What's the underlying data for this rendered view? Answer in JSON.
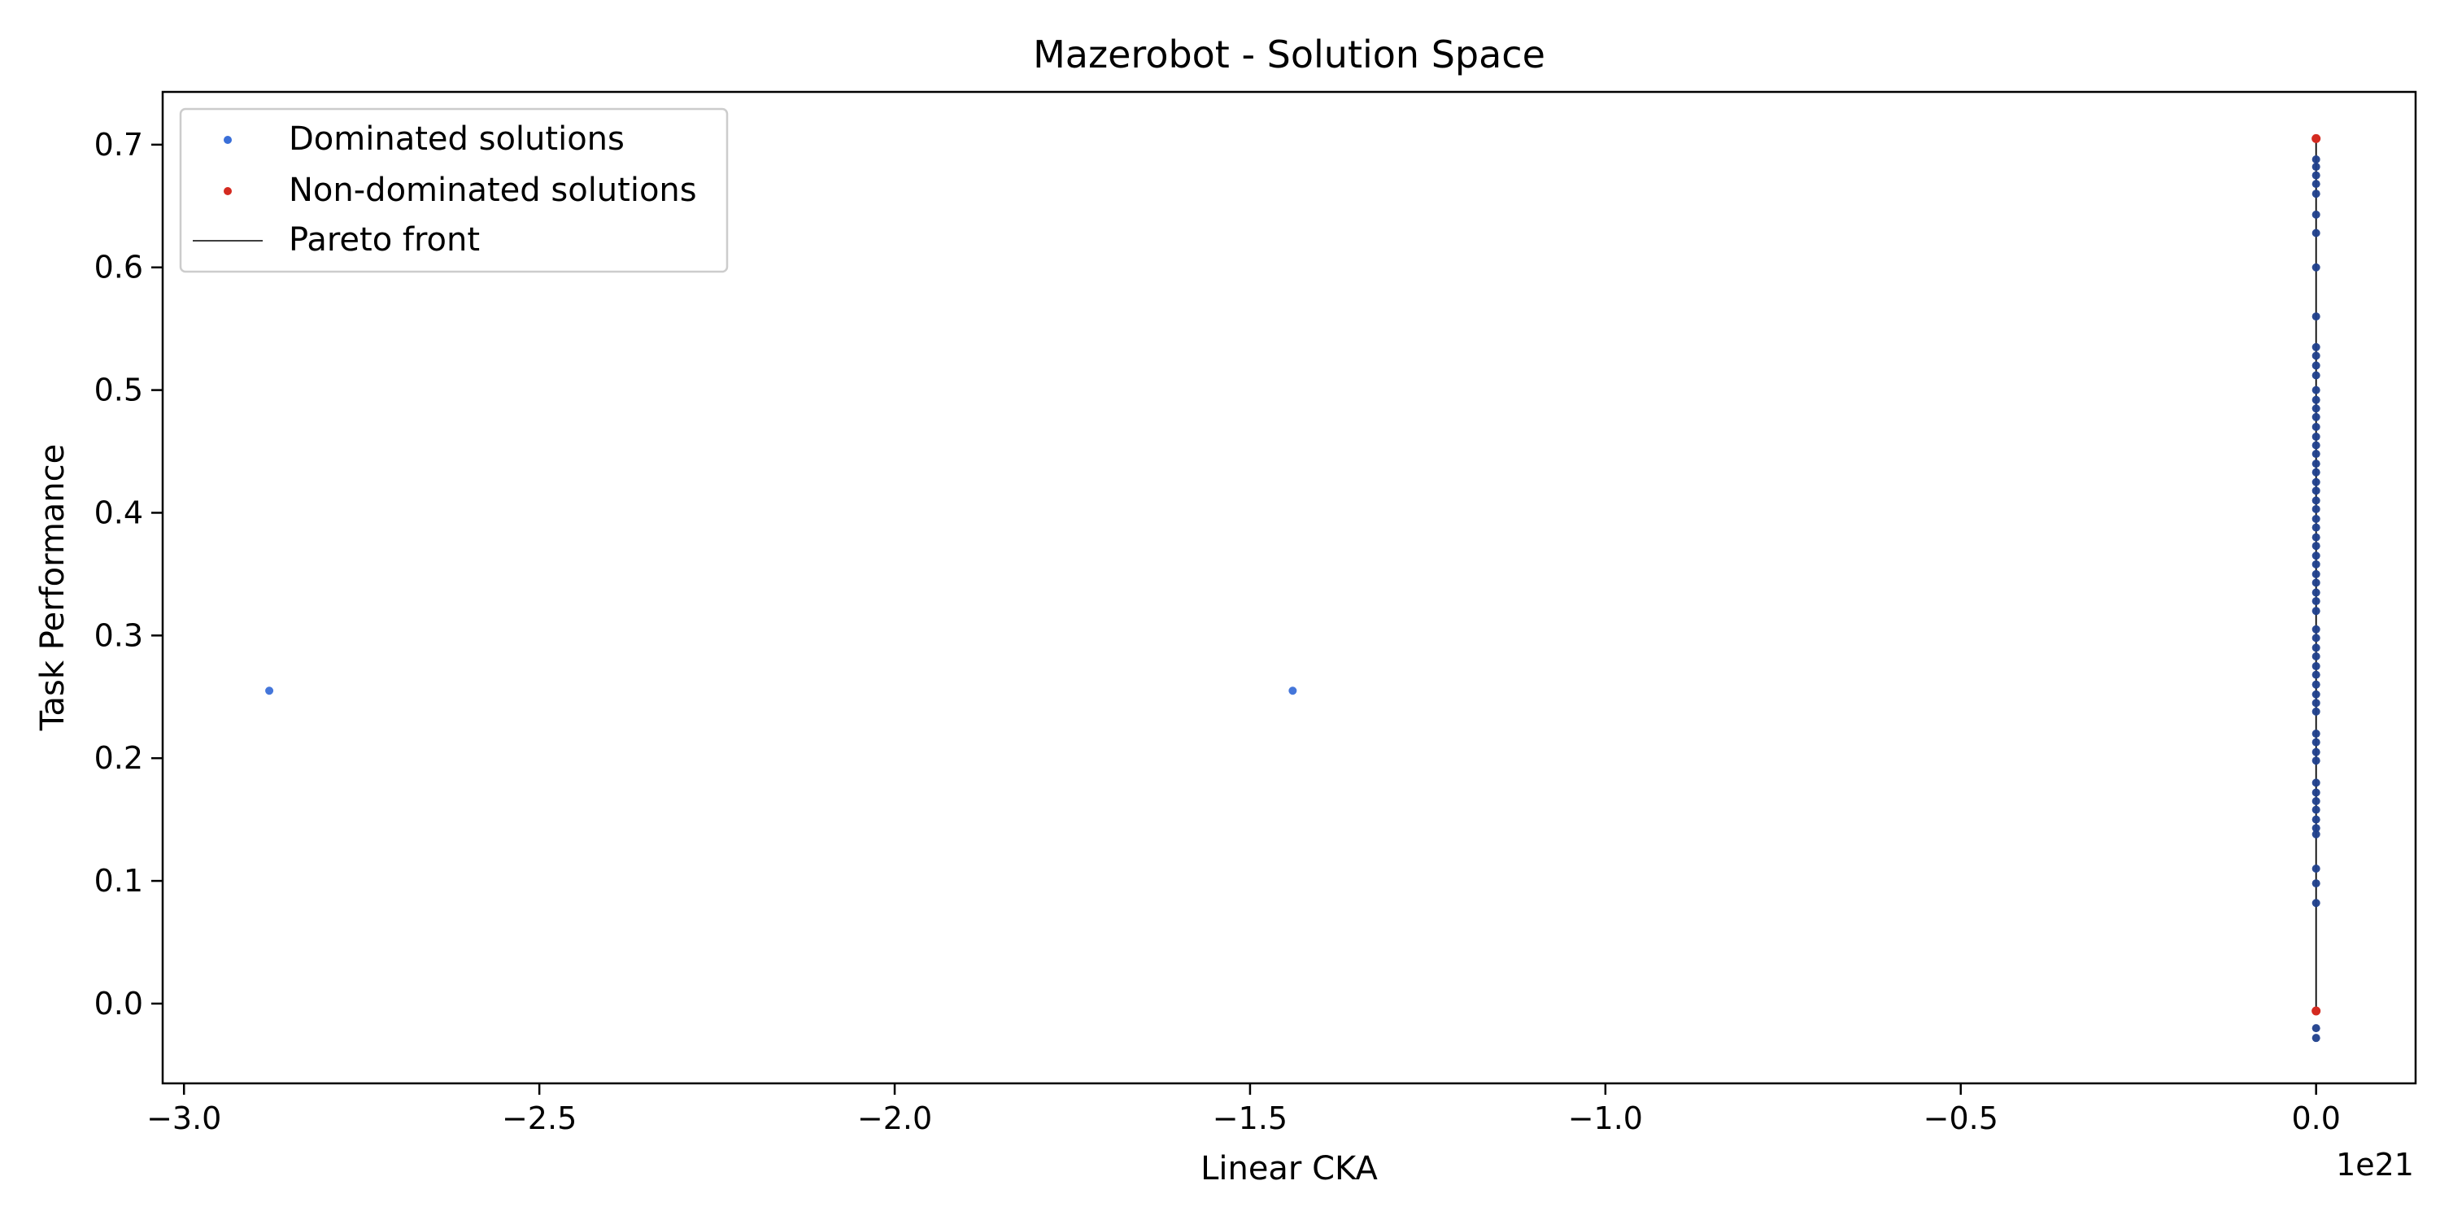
{
  "chart_data": {
    "type": "scatter",
    "title": "Mazerobot - Solution Space",
    "xlabel": "Linear CKA",
    "ylabel": "Task Performance",
    "x_offset_text": "1e21",
    "x_scale_factor": 1e+21,
    "xlim": [
      -3.03,
      0.14
    ],
    "ylim": [
      -0.065,
      0.743
    ],
    "x_ticks": [
      -3.0,
      -2.5,
      -2.0,
      -1.5,
      -1.0,
      -0.5,
      0.0
    ],
    "x_tick_labels": [
      "−3.0",
      "−2.5",
      "−2.0",
      "−1.5",
      "−1.0",
      "−0.5",
      "0.0"
    ],
    "y_ticks": [
      0.0,
      0.1,
      0.2,
      0.3,
      0.4,
      0.5,
      0.6,
      0.7
    ],
    "y_tick_labels": [
      "0.0",
      "0.1",
      "0.2",
      "0.3",
      "0.4",
      "0.5",
      "0.6",
      "0.7"
    ],
    "grid": false,
    "legend_position": "top-left",
    "series": [
      {
        "name": "Dominated solutions",
        "kind": "scatter",
        "color": "#3a6fd8",
        "edge_color": "#1f3f8c",
        "points": [
          {
            "x": -2.88,
            "y": 0.255
          },
          {
            "x": -1.44,
            "y": 0.255
          },
          {
            "x": 0,
            "y": 0.688
          },
          {
            "x": 0,
            "y": 0.682
          },
          {
            "x": 0,
            "y": 0.675
          },
          {
            "x": 0,
            "y": 0.668
          },
          {
            "x": 0,
            "y": 0.66
          },
          {
            "x": 0,
            "y": 0.643
          },
          {
            "x": 0,
            "y": 0.628
          },
          {
            "x": 0,
            "y": 0.6
          },
          {
            "x": 0,
            "y": 0.56
          },
          {
            "x": 0,
            "y": 0.535
          },
          {
            "x": 0,
            "y": 0.528
          },
          {
            "x": 0,
            "y": 0.52
          },
          {
            "x": 0,
            "y": 0.512
          },
          {
            "x": 0,
            "y": 0.5
          },
          {
            "x": 0,
            "y": 0.492
          },
          {
            "x": 0,
            "y": 0.485
          },
          {
            "x": 0,
            "y": 0.478
          },
          {
            "x": 0,
            "y": 0.47
          },
          {
            "x": 0,
            "y": 0.462
          },
          {
            "x": 0,
            "y": 0.455
          },
          {
            "x": 0,
            "y": 0.448
          },
          {
            "x": 0,
            "y": 0.44
          },
          {
            "x": 0,
            "y": 0.433
          },
          {
            "x": 0,
            "y": 0.425
          },
          {
            "x": 0,
            "y": 0.418
          },
          {
            "x": 0,
            "y": 0.41
          },
          {
            "x": 0,
            "y": 0.403
          },
          {
            "x": 0,
            "y": 0.395
          },
          {
            "x": 0,
            "y": 0.388
          },
          {
            "x": 0,
            "y": 0.38
          },
          {
            "x": 0,
            "y": 0.373
          },
          {
            "x": 0,
            "y": 0.365
          },
          {
            "x": 0,
            "y": 0.358
          },
          {
            "x": 0,
            "y": 0.35
          },
          {
            "x": 0,
            "y": 0.343
          },
          {
            "x": 0,
            "y": 0.335
          },
          {
            "x": 0,
            "y": 0.328
          },
          {
            "x": 0,
            "y": 0.32
          },
          {
            "x": 0,
            "y": 0.305
          },
          {
            "x": 0,
            "y": 0.298
          },
          {
            "x": 0,
            "y": 0.29
          },
          {
            "x": 0,
            "y": 0.283
          },
          {
            "x": 0,
            "y": 0.275
          },
          {
            "x": 0,
            "y": 0.268
          },
          {
            "x": 0,
            "y": 0.26
          },
          {
            "x": 0,
            "y": 0.252
          },
          {
            "x": 0,
            "y": 0.245
          },
          {
            "x": 0,
            "y": 0.238
          },
          {
            "x": 0,
            "y": 0.22
          },
          {
            "x": 0,
            "y": 0.213
          },
          {
            "x": 0,
            "y": 0.205
          },
          {
            "x": 0,
            "y": 0.198
          },
          {
            "x": 0,
            "y": 0.18
          },
          {
            "x": 0,
            "y": 0.172
          },
          {
            "x": 0,
            "y": 0.165
          },
          {
            "x": 0,
            "y": 0.158
          },
          {
            "x": 0,
            "y": 0.15
          },
          {
            "x": 0,
            "y": 0.143
          },
          {
            "x": 0,
            "y": 0.138
          },
          {
            "x": 0,
            "y": 0.11
          },
          {
            "x": 0,
            "y": 0.098
          },
          {
            "x": 0,
            "y": 0.082
          },
          {
            "x": 0,
            "y": -0.02
          },
          {
            "x": 0,
            "y": -0.028
          }
        ]
      },
      {
        "name": "Non-dominated solutions",
        "kind": "scatter",
        "color": "#d42a20",
        "points": [
          {
            "x": 0,
            "y": 0.705
          },
          {
            "x": 0,
            "y": -0.006
          }
        ]
      },
      {
        "name": "Pareto front",
        "kind": "line",
        "color": "#000000",
        "points": [
          {
            "x": 0,
            "y": 0.705
          },
          {
            "x": 0,
            "y": -0.006
          }
        ]
      }
    ]
  }
}
